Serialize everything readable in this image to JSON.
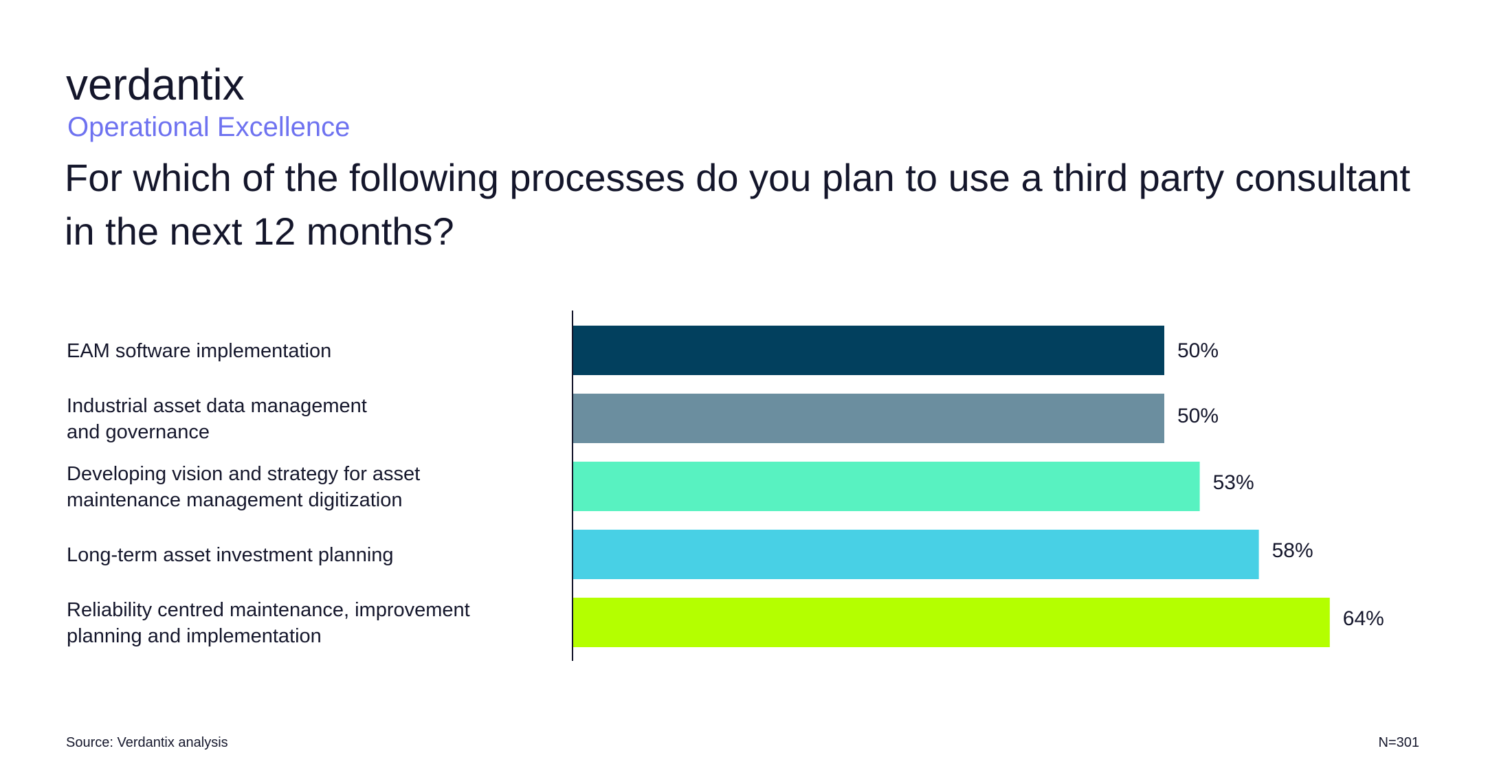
{
  "brand": {
    "logo_text": "verdantix"
  },
  "header": {
    "subtitle": "Operational Excellence",
    "subtitle_color": "#6e72f0",
    "title": "For which of the following processes do you plan to use a third party consultant in the next 12 months?"
  },
  "chart_data": {
    "type": "bar",
    "orientation": "horizontal",
    "title": "For which of the following processes do you plan to use a third party consultant in the next 12 months?",
    "categories": [
      [
        "EAM software implementation"
      ],
      [
        "Industrial asset data management",
        "and governance"
      ],
      [
        "Developing vision and strategy for asset",
        "maintenance management digitization"
      ],
      [
        "Long-term asset investment planning"
      ],
      [
        "Reliability centred maintenance, improvement",
        "planning and implementation"
      ]
    ],
    "values": [
      50,
      50,
      53,
      58,
      64
    ],
    "value_labels": [
      "50%",
      "50%",
      "53%",
      "58%",
      "64%"
    ],
    "colors": [
      "#02405e",
      "#6b8e9f",
      "#58f2c1",
      "#48d0e5",
      "#b4ff00"
    ],
    "xlim": [
      0,
      100
    ],
    "grid": false,
    "legend": "none"
  },
  "footer": {
    "source": "Source: Verdantix analysis",
    "n": "N=301"
  }
}
